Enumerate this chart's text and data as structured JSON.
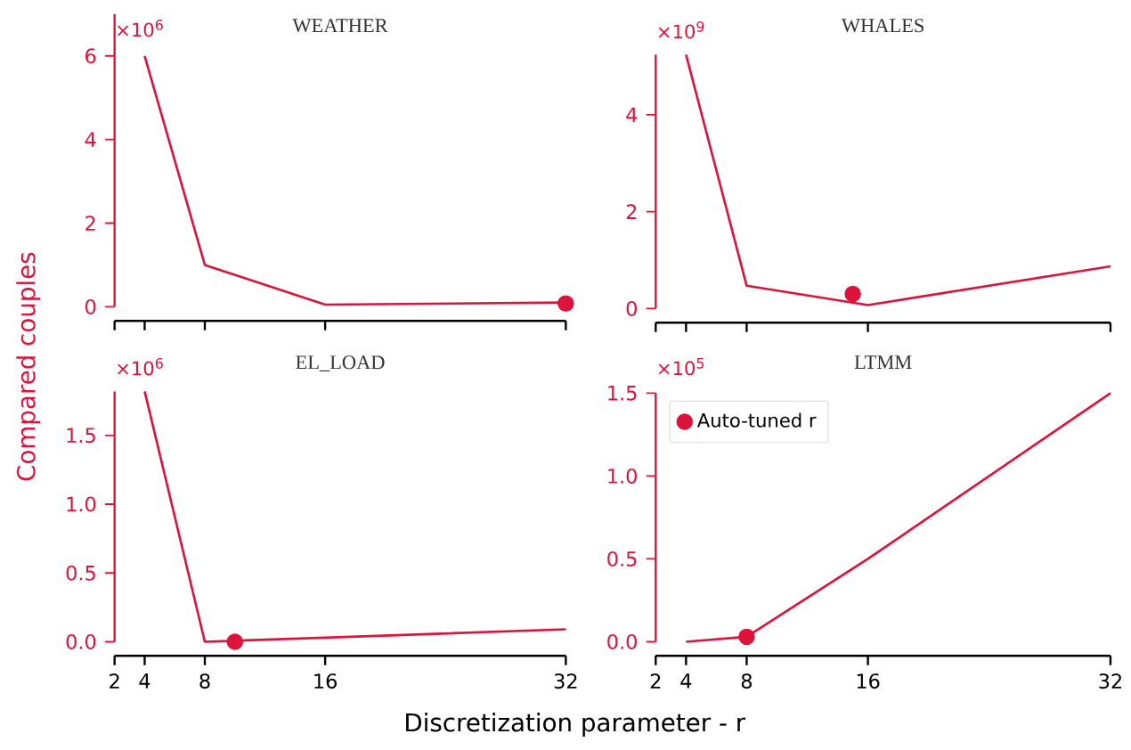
{
  "chart_data": [
    {
      "type": "line",
      "title": "WEATHER",
      "ylabel": "Compared couples",
      "annotations": [
        "×10$^{6}$"
      ],
      "x": [
        4,
        8,
        16,
        32
      ],
      "series": [
        {
          "color": "#dc143c",
          "values": [
            6,
            1,
            0.05,
            0.1
          ]
        },
        {
          "type": "scatter",
          "color": "#dc143c",
          "x": [
            32
          ],
          "values": [
            0.08
          ],
          "marker": "circle"
        }
      ],
      "xlim": [
        2,
        32
      ],
      "xticks": [
        2,
        4,
        8,
        16,
        32
      ],
      "ylim": [
        0,
        7
      ],
      "yticks": [
        0,
        2,
        4,
        6
      ],
      "tick_labels": "y"
    },
    {
      "type": "line",
      "title": "WHALES",
      "annotations": [
        "×10$^{9}$"
      ],
      "x": [
        4,
        8,
        16,
        32
      ],
      "series": [
        {
          "color": "#dc143c",
          "values": [
            5.24,
            0.47,
            0.07,
            0.87
          ]
        },
        {
          "type": "scatter",
          "color": "#dc143c",
          "x": [
            15
          ],
          "values": [
            0.3
          ],
          "marker": "circle"
        }
      ],
      "xlim": [
        2,
        32
      ],
      "xticks": [
        2,
        4,
        8,
        16,
        32
      ],
      "ylim": [
        0,
        5.24
      ],
      "yticks": [
        0,
        2,
        4
      ],
      "tick_labels": "y"
    },
    {
      "type": "line",
      "title": "EL_LOAD",
      "annotations": [
        "×10$^{6}$"
      ],
      "x": [
        4,
        8,
        16,
        32
      ],
      "series": [
        {
          "color": "#dc143c",
          "values": [
            1.82,
            0.0,
            0.03,
            0.09
          ]
        },
        {
          "type": "scatter",
          "color": "#dc143c",
          "x": [
            10
          ],
          "values": [
            0.0
          ],
          "marker": "circle"
        }
      ],
      "xlim": [
        2,
        32
      ],
      "xticks": [
        2,
        4,
        8,
        16,
        32
      ],
      "ylim": [
        0,
        1.82
      ],
      "yticks": [
        {
          "value": 0,
          "label": "0.0"
        },
        {
          "value": 0.5,
          "label": "0.5"
        },
        {
          "value": 1,
          "label": "1.0"
        },
        {
          "value": 1.5,
          "label": "1.5"
        }
      ]
    },
    {
      "type": "line",
      "title": "LTMM",
      "xlabel": "Discretization parameter - r",
      "annotations": [
        "×10$^{5}$"
      ],
      "x": [
        4,
        8,
        16,
        32
      ],
      "series": [
        {
          "color": "#dc143c",
          "values": [
            0.0,
            0.03,
            0.5,
            1.5
          ]
        },
        {
          "type": "scatter",
          "name": "Auto-tuned r",
          "color": "#dc143c",
          "x": [
            8
          ],
          "values": [
            0.03
          ],
          "marker": "circle"
        }
      ],
      "xlim": [
        2,
        32
      ],
      "xticks": [
        2,
        4,
        8,
        16,
        32
      ],
      "ylim": [
        0,
        1.5
      ],
      "yticks": [
        {
          "value": 0,
          "label": "0.0"
        },
        {
          "value": 0.5,
          "label": "0.5"
        },
        {
          "value": 1,
          "label": "1.0"
        },
        {
          "value": 1.5,
          "label": "1.5"
        }
      ],
      "legend": "top left"
    }
  ]
}
